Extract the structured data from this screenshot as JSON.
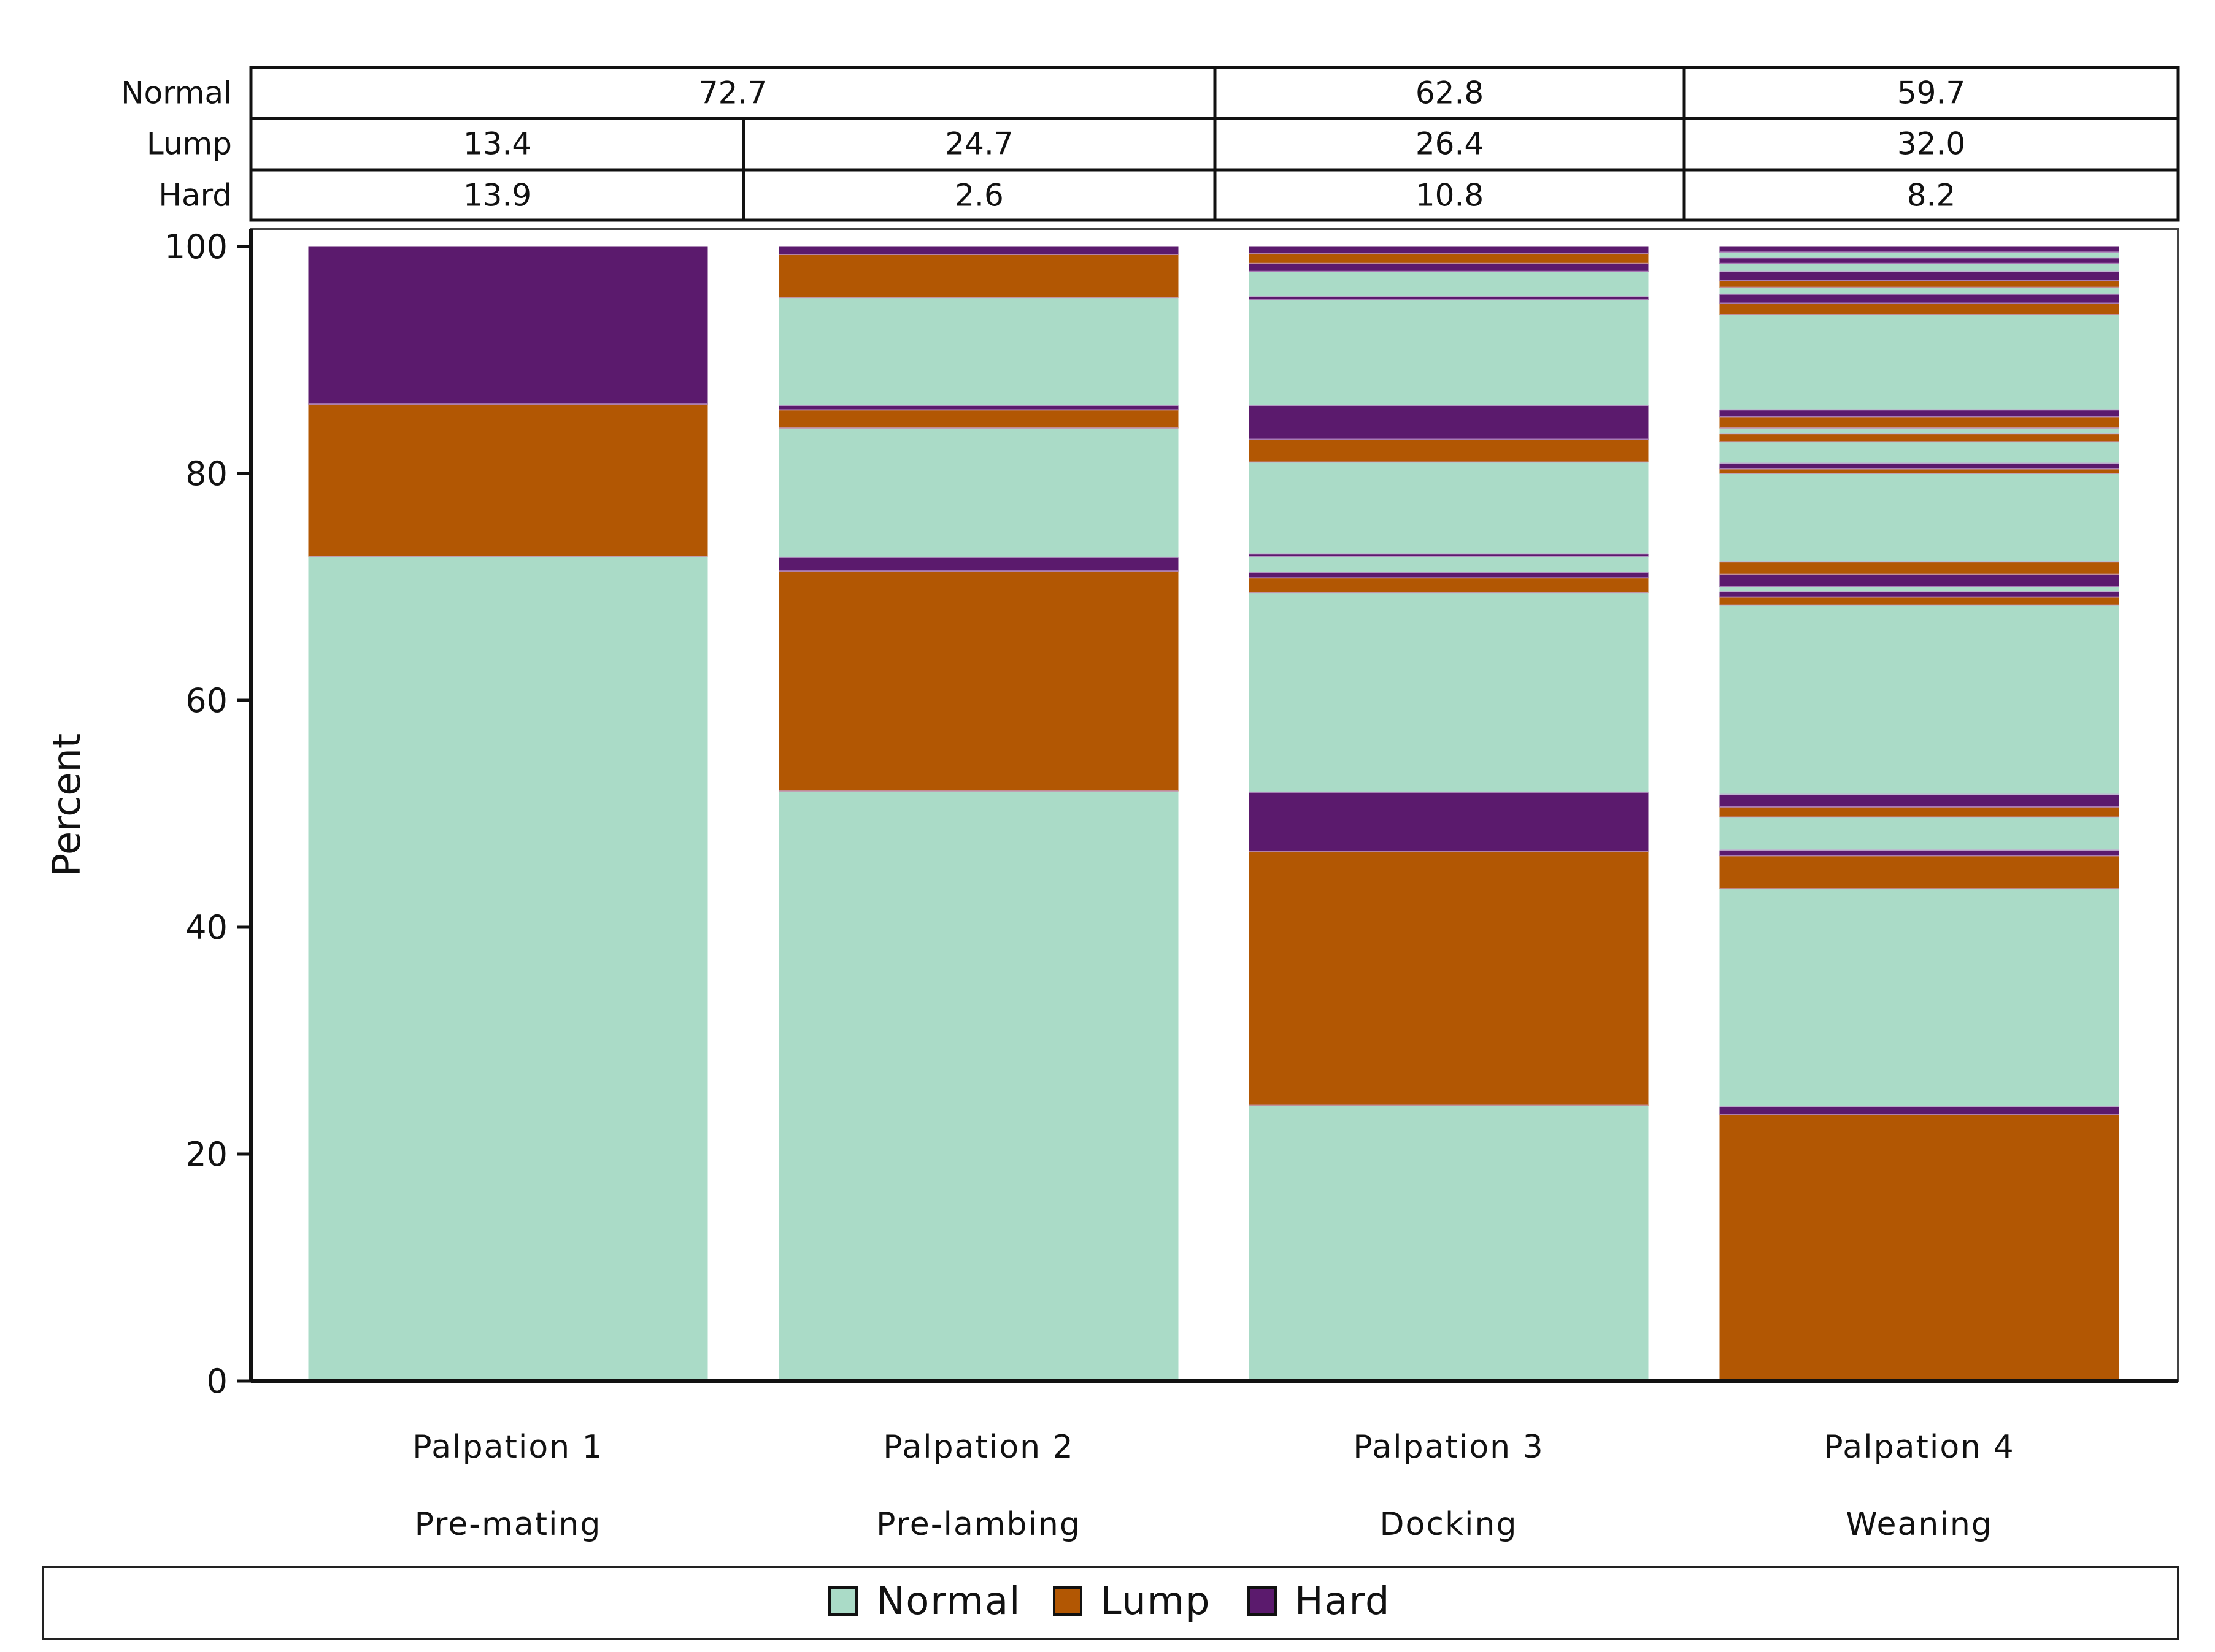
{
  "chart_data": {
    "type": "bar",
    "stacked": true,
    "ylabel": "Percent",
    "ylim": [
      0,
      100
    ],
    "yticks": [
      0,
      20,
      40,
      60,
      80,
      100
    ],
    "categories": [
      {
        "label": "Palpation 1",
        "sublabel": "Pre-mating"
      },
      {
        "label": "Palpation 2",
        "sublabel": "Pre-lambing"
      },
      {
        "label": "Palpation 3",
        "sublabel": "Docking"
      },
      {
        "label": "Palpation 4",
        "sublabel": "Weaning"
      }
    ],
    "series_colors": {
      "Normal": "#aadbc7",
      "Lump": "#b25703",
      "Hard": "#5b1a6d"
    },
    "legend": [
      "Normal",
      "Lump",
      "Hard"
    ],
    "table": [
      {
        "label": "Normal",
        "cells": [
          {
            "value": "72.7",
            "span": 2
          },
          {
            "value": "62.8",
            "span": 1
          },
          {
            "value": "59.7",
            "span": 1
          }
        ]
      },
      {
        "label": "Lump",
        "cells": [
          {
            "value": "13.4",
            "span": 1
          },
          {
            "value": "24.7",
            "span": 1
          },
          {
            "value": "26.4",
            "span": 1
          },
          {
            "value": "32.0",
            "span": 1
          }
        ]
      },
      {
        "label": "Hard",
        "cells": [
          {
            "value": "13.9",
            "span": 1
          },
          {
            "value": "2.6",
            "span": 1
          },
          {
            "value": "10.8",
            "span": 1
          },
          {
            "value": "8.2",
            "span": 1
          }
        ]
      }
    ],
    "segments": [
      [
        {
          "s": "Normal",
          "from": 0,
          "to": 72.7
        },
        {
          "s": "Lump",
          "from": 72.7,
          "to": 86.1
        },
        {
          "s": "Hard",
          "from": 86.1,
          "to": 100
        }
      ],
      [
        {
          "s": "Normal",
          "from": 0,
          "to": 52
        },
        {
          "s": "Lump",
          "from": 52,
          "to": 71.4
        },
        {
          "s": "Hard",
          "from": 71.4,
          "to": 72.6
        },
        {
          "s": "Normal",
          "from": 72.6,
          "to": 84
        },
        {
          "s": "Lump",
          "from": 84,
          "to": 85.6
        },
        {
          "s": "Hard",
          "from": 85.6,
          "to": 86
        },
        {
          "s": "Normal",
          "from": 86,
          "to": 95.5
        },
        {
          "s": "Lump",
          "from": 95.5,
          "to": 99.3
        },
        {
          "s": "Hard",
          "from": 99.3,
          "to": 100
        }
      ],
      [
        {
          "s": "Normal",
          "from": 0,
          "to": 24.3
        },
        {
          "s": "Lump",
          "from": 24.3,
          "to": 46.7
        },
        {
          "s": "Hard",
          "from": 46.7,
          "to": 51.9
        },
        {
          "s": "Normal",
          "from": 51.9,
          "to": 69.5
        },
        {
          "s": "Lump",
          "from": 69.5,
          "to": 70.8
        },
        {
          "s": "Hard",
          "from": 70.8,
          "to": 71.3
        },
        {
          "s": "Normal",
          "from": 71.3,
          "to": 72.7
        },
        {
          "s": "Hard",
          "from": 72.7,
          "to": 72.9
        },
        {
          "s": "Normal",
          "from": 72.9,
          "to": 81
        },
        {
          "s": "Lump",
          "from": 81,
          "to": 83
        },
        {
          "s": "Hard",
          "from": 83,
          "to": 86
        },
        {
          "s": "Normal",
          "from": 86,
          "to": 95.3
        },
        {
          "s": "Hard",
          "from": 95.3,
          "to": 95.6
        },
        {
          "s": "Normal",
          "from": 95.6,
          "to": 97.8
        },
        {
          "s": "Hard",
          "from": 97.8,
          "to": 98.5
        },
        {
          "s": "Lump",
          "from": 98.5,
          "to": 99.4
        },
        {
          "s": "Hard",
          "from": 99.4,
          "to": 100
        }
      ],
      [
        {
          "s": "Lump",
          "from": 0,
          "to": 23.5
        },
        {
          "s": "Hard",
          "from": 23.5,
          "to": 24.2
        },
        {
          "s": "Normal",
          "from": 24.2,
          "to": 43.4
        },
        {
          "s": "Lump",
          "from": 43.4,
          "to": 46.3
        },
        {
          "s": "Hard",
          "from": 46.3,
          "to": 46.8
        },
        {
          "s": "Normal",
          "from": 46.8,
          "to": 49.7
        },
        {
          "s": "Lump",
          "from": 49.7,
          "to": 50.6
        },
        {
          "s": "Hard",
          "from": 50.6,
          "to": 51.7
        },
        {
          "s": "Normal",
          "from": 51.7,
          "to": 68.4
        },
        {
          "s": "Lump",
          "from": 68.4,
          "to": 69.1
        },
        {
          "s": "Hard",
          "from": 69.1,
          "to": 69.6
        },
        {
          "s": "Normal",
          "from": 69.6,
          "to": 70
        },
        {
          "s": "Hard",
          "from": 70,
          "to": 71.1
        },
        {
          "s": "Lump",
          "from": 71.1,
          "to": 72.2
        },
        {
          "s": "Normal",
          "from": 72.2,
          "to": 80
        },
        {
          "s": "Lump",
          "from": 80,
          "to": 80.4
        },
        {
          "s": "Hard",
          "from": 80.4,
          "to": 80.9
        },
        {
          "s": "Normal",
          "from": 80.9,
          "to": 82.8
        },
        {
          "s": "Lump",
          "from": 82.8,
          "to": 83.5
        },
        {
          "s": "Normal",
          "from": 83.5,
          "to": 84
        },
        {
          "s": "Lump",
          "from": 84,
          "to": 85
        },
        {
          "s": "Hard",
          "from": 85,
          "to": 85.6
        },
        {
          "s": "Normal",
          "from": 85.6,
          "to": 94
        },
        {
          "s": "Lump",
          "from": 94,
          "to": 95
        },
        {
          "s": "Hard",
          "from": 95,
          "to": 95.8
        },
        {
          "s": "Normal",
          "from": 95.8,
          "to": 96.4
        },
        {
          "s": "Lump",
          "from": 96.4,
          "to": 97
        },
        {
          "s": "Hard",
          "from": 97,
          "to": 97.8
        },
        {
          "s": "Normal",
          "from": 97.8,
          "to": 98.5
        },
        {
          "s": "Hard",
          "from": 98.5,
          "to": 99
        },
        {
          "s": "Normal",
          "from": 99,
          "to": 99.5
        },
        {
          "s": "Hard",
          "from": 99.5,
          "to": 100
        }
      ]
    ]
  }
}
